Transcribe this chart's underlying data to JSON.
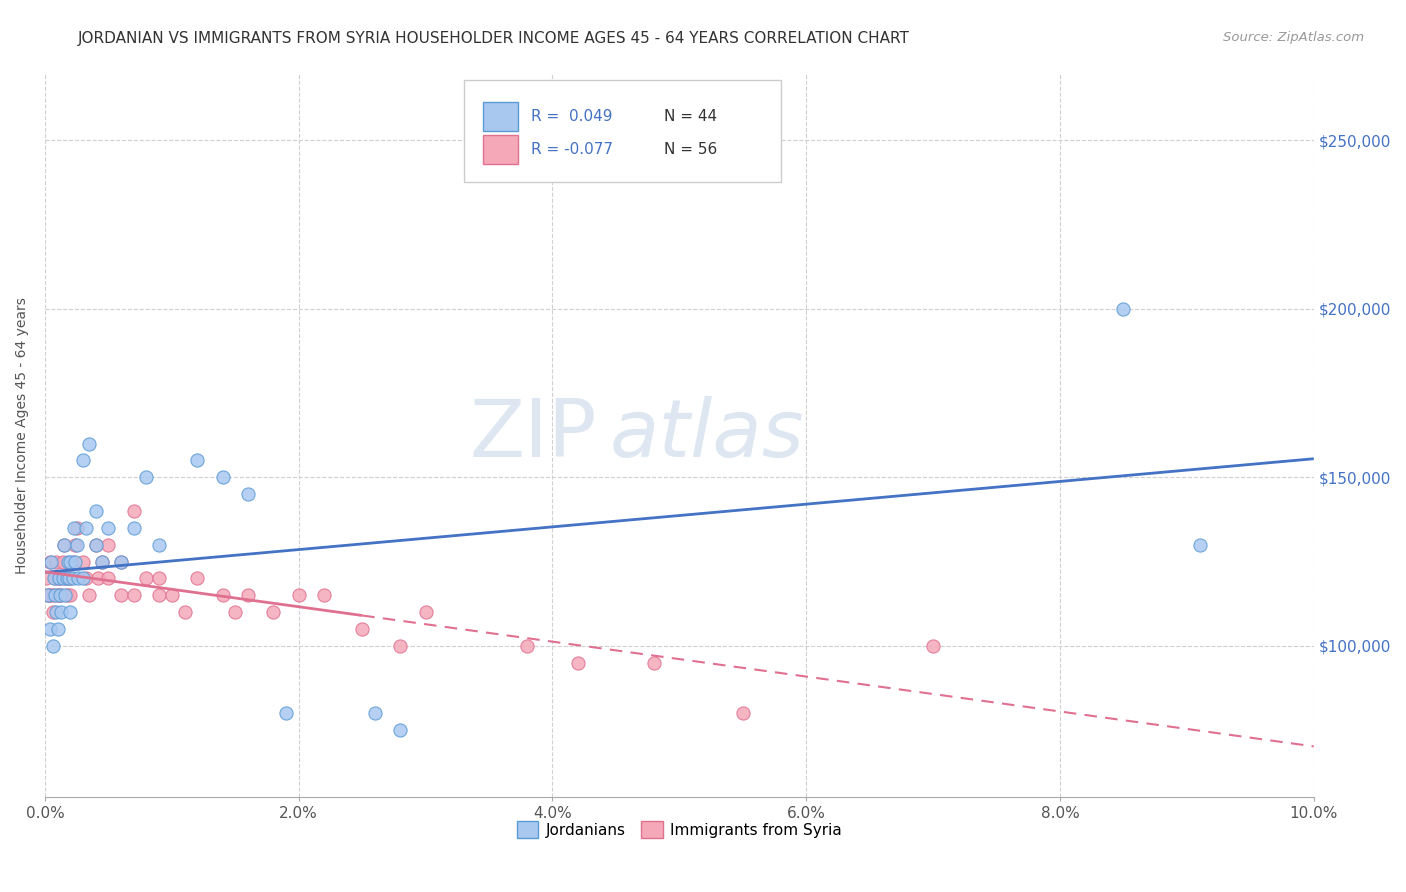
{
  "title": "JORDANIAN VS IMMIGRANTS FROM SYRIA HOUSEHOLDER INCOME AGES 45 - 64 YEARS CORRELATION CHART",
  "source": "Source: ZipAtlas.com",
  "ylabel": "Householder Income Ages 45 - 64 years",
  "xlim": [
    0.0,
    0.1
  ],
  "ylim": [
    55000,
    270000
  ],
  "background_color": "#ffffff",
  "grid_color": "#d0d0d0",
  "jordan_fill": "#a8c8f0",
  "jordan_edge": "#5b9bd5",
  "syria_fill": "#f4a8b8",
  "syria_edge": "#e07090",
  "jordan_line_color": "#4472c4",
  "syria_line_color": "#e07090",
  "legend_R_jordan": "R =  0.049",
  "legend_N_jordan": "N = 44",
  "legend_R_syria": "R = -0.077",
  "legend_N_syria": "N = 56",
  "watermark": "ZIPatlas",
  "ytick_labels": [
    "$100,000",
    "$150,000",
    "$200,000",
    "$250,000"
  ],
  "ytick_values": [
    100000,
    150000,
    200000,
    250000
  ],
  "xtick_values": [
    0.0,
    0.02,
    0.04,
    0.06,
    0.08,
    0.1
  ],
  "jordan_x": [
    0.0002,
    0.0004,
    0.0005,
    0.0006,
    0.0007,
    0.0008,
    0.0009,
    0.001,
    0.0011,
    0.0012,
    0.0013,
    0.0014,
    0.0015,
    0.0016,
    0.0017,
    0.0018,
    0.0019,
    0.002,
    0.002,
    0.0022,
    0.0023,
    0.0024,
    0.0025,
    0.0026,
    0.003,
    0.003,
    0.0032,
    0.0035,
    0.004,
    0.004,
    0.0045,
    0.005,
    0.006,
    0.007,
    0.008,
    0.009,
    0.012,
    0.014,
    0.016,
    0.019,
    0.026,
    0.028,
    0.085,
    0.091
  ],
  "jordan_y": [
    115000,
    105000,
    125000,
    100000,
    120000,
    115000,
    110000,
    105000,
    120000,
    115000,
    110000,
    120000,
    130000,
    115000,
    120000,
    125000,
    120000,
    110000,
    125000,
    120000,
    135000,
    125000,
    130000,
    120000,
    155000,
    120000,
    135000,
    160000,
    140000,
    130000,
    125000,
    135000,
    125000,
    135000,
    150000,
    130000,
    155000,
    150000,
    145000,
    80000,
    80000,
    75000,
    200000,
    130000
  ],
  "syria_x": [
    0.0001,
    0.0002,
    0.0003,
    0.0004,
    0.0005,
    0.0006,
    0.0007,
    0.0008,
    0.0009,
    0.001,
    0.001,
    0.0011,
    0.0012,
    0.0013,
    0.0014,
    0.0015,
    0.0016,
    0.0017,
    0.0018,
    0.002,
    0.002,
    0.0022,
    0.0024,
    0.0025,
    0.003,
    0.0032,
    0.0035,
    0.004,
    0.0042,
    0.0045,
    0.005,
    0.005,
    0.006,
    0.006,
    0.007,
    0.007,
    0.008,
    0.009,
    0.009,
    0.01,
    0.011,
    0.012,
    0.014,
    0.015,
    0.016,
    0.018,
    0.02,
    0.022,
    0.025,
    0.028,
    0.03,
    0.038,
    0.042,
    0.048,
    0.055,
    0.07
  ],
  "syria_y": [
    120000,
    115000,
    115000,
    125000,
    115000,
    110000,
    115000,
    120000,
    125000,
    115000,
    120000,
    115000,
    120000,
    115000,
    125000,
    130000,
    120000,
    115000,
    120000,
    115000,
    120000,
    125000,
    130000,
    135000,
    125000,
    120000,
    115000,
    130000,
    120000,
    125000,
    120000,
    130000,
    125000,
    115000,
    140000,
    115000,
    120000,
    120000,
    115000,
    115000,
    110000,
    120000,
    115000,
    110000,
    115000,
    110000,
    115000,
    115000,
    105000,
    100000,
    110000,
    100000,
    95000,
    95000,
    80000,
    100000
  ],
  "bottom_legend_jordan": "Jordanians",
  "bottom_legend_syria": "Immigrants from Syria"
}
